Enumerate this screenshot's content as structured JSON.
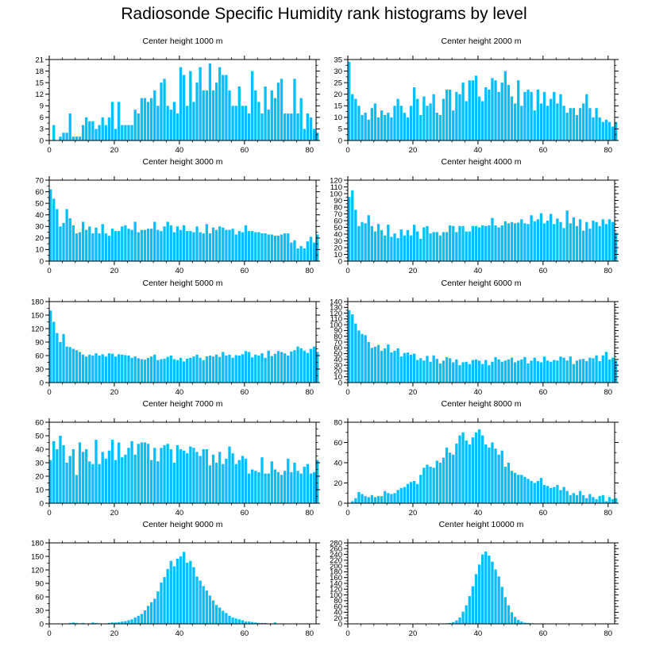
{
  "title": "Radiosonde Specific Humidity rank histograms by level",
  "colors": {
    "bar": "#00bfff",
    "axis": "#000000",
    "background": "#ffffff"
  },
  "chart_data": [
    {
      "type": "bar",
      "title": "Center height 1000 m",
      "xlim": [
        0,
        82
      ],
      "ylim": [
        0,
        21
      ],
      "xticks": [
        0,
        20,
        40,
        60,
        80
      ],
      "yticks": [
        0,
        3,
        6,
        9,
        12,
        15,
        18,
        21
      ],
      "x_start": 0,
      "values": [
        0,
        4,
        0,
        1,
        2,
        2,
        7,
        1,
        1,
        1,
        4,
        6,
        5,
        5,
        3,
        4,
        6,
        4,
        6,
        10,
        3,
        10,
        4,
        4,
        4,
        4,
        8,
        7,
        11,
        11,
        10,
        11,
        13,
        9,
        15,
        16,
        9,
        8,
        10,
        7,
        19,
        17,
        9,
        18,
        10,
        15,
        19,
        13,
        13,
        20,
        13,
        15,
        19,
        17,
        17,
        13,
        9,
        9,
        14,
        9,
        9,
        7,
        18,
        13,
        10,
        7,
        14,
        8,
        13,
        11,
        15,
        16,
        7,
        7,
        7,
        16,
        7,
        11,
        3,
        7,
        6,
        3,
        2
      ]
    },
    {
      "type": "bar",
      "title": "Center height 2000 m",
      "xlim": [
        0,
        82
      ],
      "ylim": [
        0,
        35
      ],
      "xticks": [
        0,
        20,
        40,
        60,
        80
      ],
      "yticks": [
        0,
        5,
        10,
        15,
        20,
        25,
        30,
        35
      ],
      "x_start": 0,
      "values": [
        34,
        20,
        18,
        15,
        11,
        12,
        9,
        14,
        16,
        10,
        13,
        11,
        12,
        10,
        15,
        18,
        15,
        12,
        10,
        15,
        23,
        18,
        11,
        19,
        15,
        16,
        20,
        12,
        11,
        18,
        22,
        22,
        13,
        21,
        20,
        25,
        17,
        26,
        26,
        28,
        19,
        17,
        23,
        22,
        27,
        26,
        21,
        25,
        30,
        24,
        19,
        16,
        26,
        15,
        21,
        22,
        21,
        13,
        22,
        16,
        21,
        15,
        18,
        21,
        16,
        20,
        15,
        12,
        14,
        14,
        11,
        14,
        16,
        20,
        14,
        10,
        14,
        10,
        8,
        9,
        8,
        6,
        8
      ]
    },
    {
      "type": "bar",
      "title": "Center height 3000 m",
      "xlim": [
        0,
        82
      ],
      "ylim": [
        0,
        70
      ],
      "xticks": [
        0,
        20,
        40,
        60,
        80
      ],
      "yticks": [
        0,
        10,
        20,
        30,
        40,
        50,
        60,
        70
      ],
      "x_start": 0,
      "values": [
        62,
        54,
        45,
        30,
        33,
        45,
        37,
        31,
        24,
        25,
        34,
        27,
        30,
        24,
        29,
        24,
        32,
        24,
        22,
        28,
        26,
        26,
        30,
        31,
        28,
        27,
        34,
        25,
        27,
        27,
        28,
        28,
        34,
        27,
        26,
        30,
        34,
        31,
        25,
        30,
        27,
        31,
        26,
        26,
        25,
        30,
        25,
        24,
        32,
        24,
        29,
        27,
        30,
        29,
        27,
        27,
        28,
        23,
        26,
        25,
        31,
        26,
        26,
        25,
        25,
        24,
        24,
        23,
        23,
        22,
        22,
        23,
        24,
        24,
        16,
        18,
        11,
        13,
        11,
        17,
        21,
        16,
        23
      ]
    },
    {
      "type": "bar",
      "title": "Center height 4000 m",
      "xlim": [
        0,
        82
      ],
      "ylim": [
        0,
        120
      ],
      "xticks": [
        0,
        20,
        40,
        60,
        80
      ],
      "yticks": [
        0,
        10,
        20,
        30,
        40,
        50,
        60,
        70,
        80,
        90,
        100,
        110,
        120
      ],
      "x_start": 0,
      "values": [
        95,
        105,
        76,
        52,
        58,
        56,
        68,
        52,
        44,
        55,
        46,
        38,
        54,
        36,
        41,
        34,
        47,
        38,
        46,
        38,
        54,
        44,
        33,
        50,
        52,
        41,
        43,
        43,
        38,
        43,
        43,
        53,
        52,
        43,
        52,
        52,
        44,
        44,
        52,
        52,
        50,
        53,
        52,
        53,
        64,
        53,
        50,
        53,
        59,
        56,
        58,
        56,
        57,
        62,
        56,
        55,
        68,
        59,
        62,
        71,
        56,
        60,
        70,
        55,
        63,
        58,
        49,
        75,
        56,
        65,
        52,
        62,
        45,
        58,
        48,
        60,
        58,
        52,
        62,
        55,
        62,
        58,
        42
      ]
    },
    {
      "type": "bar",
      "title": "Center height 5000 m",
      "xlim": [
        0,
        82
      ],
      "ylim": [
        0,
        180
      ],
      "xticks": [
        0,
        20,
        40,
        60,
        80
      ],
      "yticks": [
        0,
        30,
        60,
        90,
        120,
        150,
        180
      ],
      "x_start": 0,
      "values": [
        160,
        135,
        110,
        90,
        108,
        80,
        79,
        75,
        72,
        68,
        62,
        58,
        62,
        60,
        65,
        60,
        63,
        58,
        65,
        64,
        58,
        63,
        62,
        61,
        60,
        55,
        58,
        54,
        52,
        51,
        55,
        58,
        62,
        50,
        52,
        53,
        57,
        60,
        52,
        50,
        55,
        47,
        53,
        55,
        58,
        62,
        55,
        50,
        58,
        60,
        58,
        62,
        57,
        68,
        60,
        62,
        55,
        61,
        60,
        63,
        70,
        68,
        56,
        62,
        60,
        65,
        55,
        71,
        59,
        64,
        70,
        68,
        65,
        60,
        69,
        72,
        80,
        76,
        71,
        66,
        75,
        80,
        68
      ]
    },
    {
      "type": "bar",
      "title": "Center height 6000 m",
      "xlim": [
        0,
        82
      ],
      "ylim": [
        0,
        140
      ],
      "xticks": [
        0,
        20,
        40,
        60,
        80
      ],
      "yticks": [
        0,
        10,
        20,
        30,
        40,
        50,
        60,
        70,
        80,
        90,
        100,
        110,
        120,
        130,
        140
      ],
      "x_start": 0,
      "values": [
        125,
        118,
        102,
        90,
        84,
        82,
        70,
        60,
        62,
        65,
        55,
        59,
        66,
        52,
        55,
        59,
        45,
        51,
        52,
        48,
        50,
        39,
        42,
        38,
        46,
        36,
        47,
        41,
        33,
        38,
        44,
        42,
        35,
        40,
        30,
        35,
        36,
        32,
        39,
        40,
        38,
        32,
        39,
        30,
        36,
        44,
        40,
        36,
        38,
        40,
        43,
        35,
        38,
        40,
        44,
        33,
        38,
        43,
        37,
        35,
        45,
        38,
        36,
        39,
        38,
        45,
        43,
        38,
        45,
        32,
        38,
        40,
        41,
        37,
        43,
        42,
        47,
        37,
        47,
        53,
        40,
        43,
        38
      ]
    },
    {
      "type": "bar",
      "title": "Center height 7000 m",
      "xlim": [
        0,
        82
      ],
      "ylim": [
        0,
        60
      ],
      "xticks": [
        0,
        20,
        40,
        60,
        80
      ],
      "yticks": [
        0,
        10,
        20,
        30,
        40,
        50,
        60
      ],
      "x_start": 0,
      "values": [
        32,
        46,
        40,
        50,
        43,
        30,
        35,
        40,
        21,
        45,
        38,
        40,
        31,
        29,
        47,
        29,
        38,
        33,
        39,
        47,
        32,
        45,
        34,
        36,
        41,
        46,
        36,
        44,
        45,
        45,
        44,
        32,
        41,
        31,
        41,
        43,
        44,
        40,
        30,
        43,
        40,
        39,
        37,
        42,
        41,
        38,
        35,
        40,
        40,
        28,
        36,
        30,
        38,
        29,
        33,
        42,
        37,
        29,
        32,
        35,
        33,
        22,
        25,
        24,
        23,
        34,
        22,
        22,
        31,
        25,
        23,
        21,
        24,
        33,
        23,
        30,
        24,
        22,
        27,
        29,
        22,
        23,
        32
      ]
    },
    {
      "type": "bar",
      "title": "Center height 8000 m",
      "xlim": [
        0,
        82
      ],
      "ylim": [
        0,
        80
      ],
      "xticks": [
        0,
        20,
        40,
        60,
        80
      ],
      "yticks": [
        0,
        20,
        40,
        60,
        80
      ],
      "x_start": 0,
      "values": [
        0,
        2,
        5,
        11,
        9,
        7,
        6,
        8,
        6,
        7,
        7,
        12,
        10,
        9,
        10,
        13,
        15,
        16,
        19,
        21,
        22,
        19,
        28,
        35,
        38,
        36,
        35,
        42,
        40,
        45,
        55,
        50,
        48,
        59,
        67,
        70,
        62,
        58,
        65,
        70,
        73,
        67,
        58,
        55,
        60,
        54,
        48,
        52,
        36,
        40,
        32,
        30,
        28,
        28,
        26,
        24,
        22,
        20,
        22,
        25,
        18,
        17,
        15,
        16,
        18,
        13,
        16,
        12,
        8,
        10,
        8,
        12,
        8,
        5,
        9,
        6,
        4,
        7,
        8,
        2,
        6,
        4,
        5
      ]
    },
    {
      "type": "bar",
      "title": "Center height 9000 m",
      "xlim": [
        0,
        82
      ],
      "ylim": [
        0,
        180
      ],
      "xticks": [
        0,
        20,
        40,
        60,
        80
      ],
      "yticks": [
        0,
        30,
        60,
        90,
        120,
        150,
        180
      ],
      "x_start": 0,
      "values": [
        0,
        0,
        0,
        0,
        0,
        0,
        2,
        3,
        2,
        1,
        2,
        0,
        1,
        3,
        2,
        1,
        0,
        1,
        2,
        3,
        3,
        4,
        5,
        6,
        8,
        10,
        14,
        18,
        22,
        30,
        40,
        48,
        56,
        72,
        92,
        104,
        122,
        140,
        128,
        145,
        150,
        160,
        136,
        140,
        126,
        105,
        96,
        84,
        74,
        63,
        52,
        42,
        36,
        29,
        24,
        18,
        14,
        12,
        10,
        8,
        5,
        5,
        4,
        3,
        2,
        2,
        2,
        1,
        1,
        3,
        0,
        1,
        0,
        1,
        0,
        0,
        0,
        0,
        0,
        0,
        0,
        0,
        0
      ]
    },
    {
      "type": "bar",
      "title": "Center height 10000 m",
      "xlim": [
        0,
        82
      ],
      "ylim": [
        0,
        280
      ],
      "xticks": [
        0,
        20,
        40,
        60,
        80
      ],
      "yticks": [
        0,
        20,
        40,
        60,
        80,
        100,
        120,
        140,
        160,
        180,
        200,
        220,
        240,
        260,
        280
      ],
      "x_start": 0,
      "values": [
        0,
        0,
        0,
        0,
        0,
        0,
        0,
        0,
        0,
        0,
        0,
        0,
        0,
        0,
        0,
        0,
        0,
        0,
        0,
        0,
        0,
        0,
        0,
        0,
        0,
        0,
        0,
        0,
        0,
        1,
        2,
        3,
        6,
        12,
        22,
        42,
        64,
        96,
        130,
        172,
        205,
        240,
        250,
        236,
        215,
        188,
        164,
        128,
        92,
        64,
        40,
        24,
        14,
        8,
        4,
        3,
        2,
        1,
        1,
        1,
        0,
        0,
        0,
        0,
        0,
        0,
        0,
        0,
        0,
        0,
        0,
        0,
        0,
        0,
        0,
        0,
        0,
        0,
        0,
        0,
        0,
        0,
        0
      ]
    }
  ]
}
